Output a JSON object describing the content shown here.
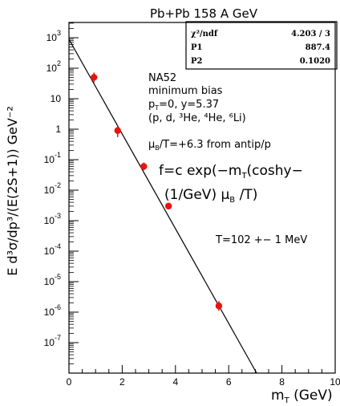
{
  "chart_data": {
    "type": "scatter",
    "title": "Pb+Pb 158 A GeV",
    "xlabel_main": "m",
    "xlabel_sub": "T",
    "xlabel_unit": "(GeV)",
    "ylabel": "E d³σ/dp³/(E(2S+1)) GeV⁻²",
    "x_ticks": [
      "0",
      "2",
      "4",
      "6",
      "8",
      "10"
    ],
    "xlim": [
      0,
      10
    ],
    "ylim_log10": [
      -8,
      3.5
    ],
    "log_y": true,
    "y_ticks": [
      {
        "base": "10",
        "exp": "3",
        "e": 3
      },
      {
        "base": "10",
        "exp": "2",
        "e": 2
      },
      {
        "base": "10",
        "exp": "",
        "e": 1
      },
      {
        "base": "1",
        "exp": "",
        "e": 0
      },
      {
        "base": "10",
        "exp": "-1",
        "e": -1
      },
      {
        "base": "10",
        "exp": "-2",
        "e": -2
      },
      {
        "base": "10",
        "exp": "-3",
        "e": -3
      },
      {
        "base": "10",
        "exp": "-4",
        "e": -4
      },
      {
        "base": "10",
        "exp": "-5",
        "e": -5
      },
      {
        "base": "10",
        "exp": "-6",
        "e": -6
      },
      {
        "base": "10",
        "exp": "-7",
        "e": -7
      }
    ],
    "points": [
      {
        "x": 0.94,
        "y": 50,
        "ylo": 34,
        "yhi": 72
      },
      {
        "x": 1.83,
        "y": 0.9,
        "ylo": 0.55,
        "yhi": 1.3
      },
      {
        "x": 2.81,
        "y": 0.06,
        "ylo": 0.045,
        "yhi": 0.08
      },
      {
        "x": 3.74,
        "y": 0.003,
        "ylo": 0.0024,
        "yhi": 0.0038
      },
      {
        "x": 5.63,
        "y": 1.6e-06,
        "ylo": 1.1e-06,
        "yhi": 2.3e-06
      }
    ],
    "fit_line": {
      "x": [
        0,
        7.05
      ],
      "y": [
        890,
        1e-08
      ]
    },
    "stats_box": {
      "rows": [
        {
          "label": "χ²/ndf",
          "value": "4.203     /     3"
        },
        {
          "label": "P1",
          "value": "887.4"
        },
        {
          "label": "P2",
          "value": "0.1020"
        }
      ]
    },
    "annotations": {
      "lines": [
        "NA52",
        "minimum bias",
        "(p, d, ³He, ⁴He, ⁶Li)"
      ],
      "pt_line": "p  =0, y=5.37",
      "pt_sub": "T",
      "mu_line": "μ /T=+6.3 from antip/p",
      "mu_sub": "B",
      "formula1": "f=c exp(−m (coshy−",
      "formula1_sub": "T",
      "formula2": "(1/GeV) μ ) /T)",
      "formula2_sub": "B",
      "temperature": "T=102 +− 1 MeV"
    },
    "colors": {
      "marker": "#e8140e",
      "axes": "#000000",
      "line": "#000000"
    }
  }
}
